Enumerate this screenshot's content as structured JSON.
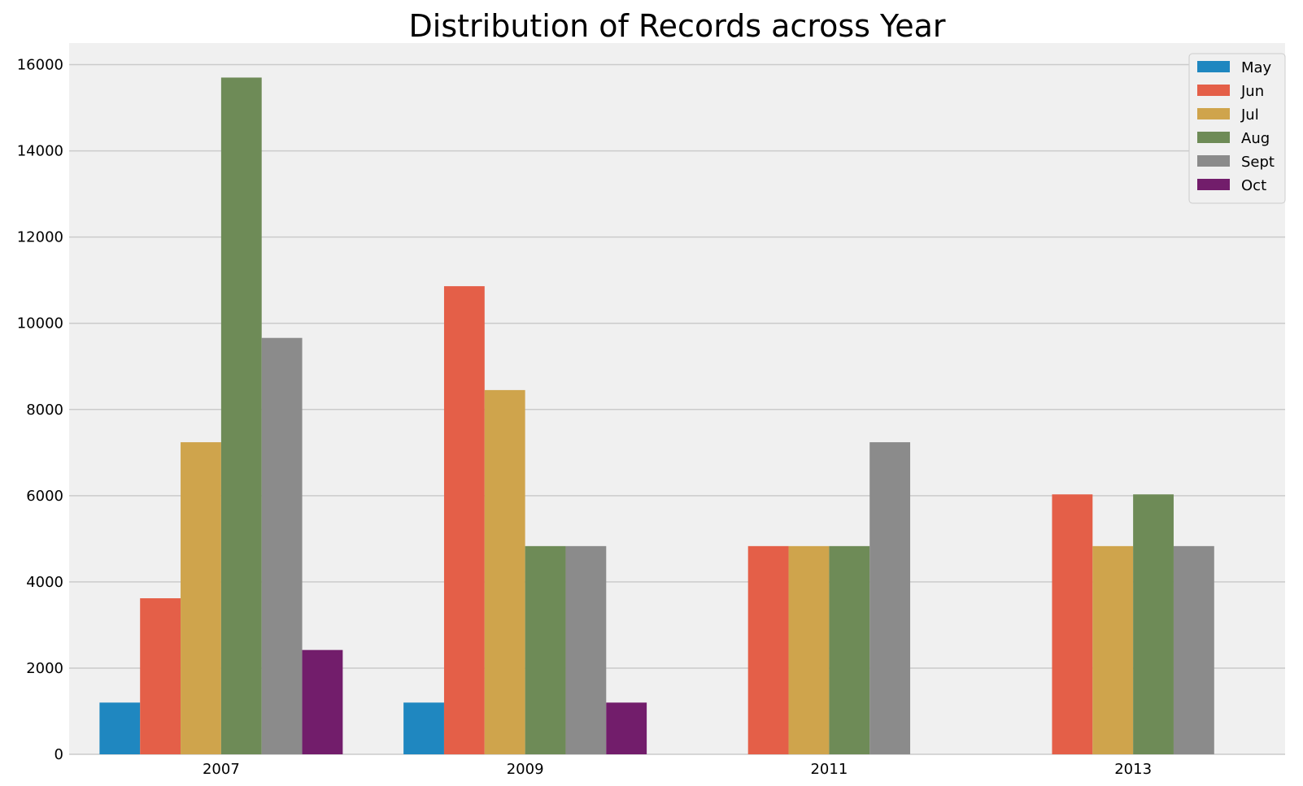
{
  "chart_data": {
    "type": "bar",
    "title": "Distribution of Records across Year",
    "xlabel": "",
    "ylabel": "",
    "categories": [
      "2007",
      "2009",
      "2011",
      "2013"
    ],
    "series": [
      {
        "name": "May",
        "color": "#1f87c0",
        "values": [
          1200,
          1200,
          0,
          0
        ]
      },
      {
        "name": "Jun",
        "color": "#e45f48",
        "values": [
          3620,
          10860,
          4830,
          6030
        ]
      },
      {
        "name": "Jul",
        "color": "#cfa44c",
        "values": [
          7240,
          8450,
          4830,
          4830
        ]
      },
      {
        "name": "Aug",
        "color": "#6e8b57",
        "values": [
          15700,
          4830,
          4830,
          6030
        ]
      },
      {
        "name": "Sept",
        "color": "#8b8b8b",
        "values": [
          9660,
          4830,
          7240,
          4830
        ]
      },
      {
        "name": "Oct",
        "color": "#721d6b",
        "values": [
          2420,
          1200,
          0,
          0
        ]
      }
    ],
    "ylim": [
      0,
      16500
    ],
    "yticks": [
      0,
      2000,
      4000,
      6000,
      8000,
      10000,
      12000,
      14000,
      16000
    ],
    "ytick_labels": [
      "0",
      "2000",
      "4000",
      "6000",
      "8000",
      "10000",
      "12000",
      "14000",
      "16000"
    ],
    "grid": "horizontal",
    "legend_position": "top-right",
    "plot_background": "#f0f0f0",
    "grid_color": "#cbcbcb"
  }
}
